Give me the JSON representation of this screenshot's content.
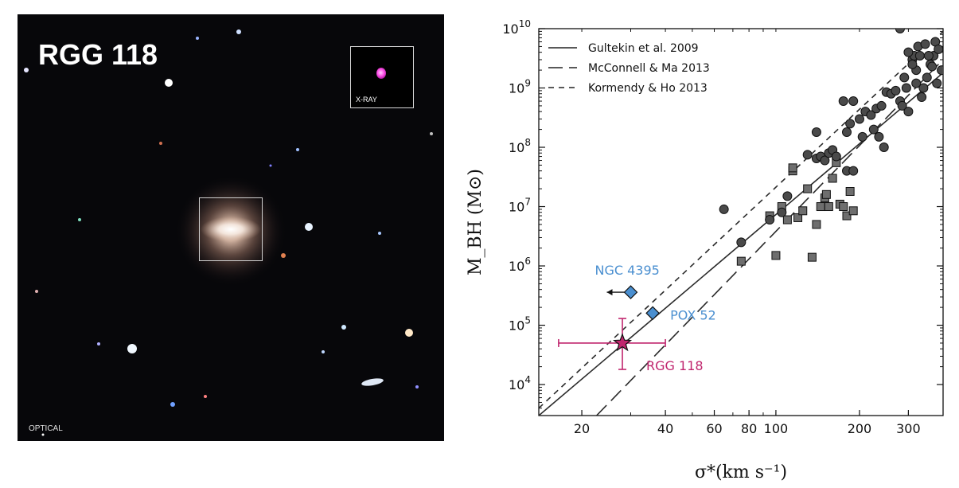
{
  "optical_panel": {
    "title": "RGG 118",
    "optical_label": "OPTICAL",
    "inset_label": "X-RAY"
  },
  "chart_data": {
    "type": "scatter",
    "xscale": "log",
    "yscale": "log",
    "xlim": [
      14,
      400
    ],
    "ylim": [
      3000,
      10000000000
    ],
    "xlabel": "σ*(km s⁻¹)",
    "ylabel": "M_BH (M⊙)",
    "x_ticks": [
      20,
      40,
      60,
      80,
      100,
      200,
      300
    ],
    "y_ticks": [
      10000,
      100000,
      1000000,
      10000000,
      100000000,
      1000000000,
      10000000000
    ],
    "legend": {
      "placement": "top-left",
      "entries": [
        "Gultekin et al. 2009",
        "McConnell & Ma 2013",
        "Kormendy & Ho 2013"
      ]
    },
    "relations": [
      {
        "name": "Gultekin et al. 2009",
        "style": "solid",
        "x": [
          14,
          400
        ],
        "y": [
          3000,
          1800000000
        ]
      },
      {
        "name": "McConnell & Ma 2013",
        "style": "long-dash",
        "x": [
          14,
          400
        ],
        "y": [
          300,
          3000000000
        ]
      },
      {
        "name": "Kormendy & Ho 2013",
        "style": "short-dash",
        "x": [
          14,
          400
        ],
        "y": [
          4000,
          9000000000
        ]
      }
    ],
    "circles": [
      [
        65,
        9000000
      ],
      [
        75,
        2500000
      ],
      [
        95,
        6000000
      ],
      [
        105,
        8000000
      ],
      [
        110,
        15000000
      ],
      [
        130,
        75000000
      ],
      [
        140,
        65000000
      ],
      [
        145,
        70000000
      ],
      [
        150,
        60000000
      ],
      [
        155,
        80000000
      ],
      [
        140,
        180000000
      ],
      [
        160,
        90000000
      ],
      [
        165,
        70000000
      ],
      [
        175,
        600000000
      ],
      [
        180,
        180000000
      ],
      [
        185,
        250000000
      ],
      [
        190,
        600000000
      ],
      [
        200,
        300000000
      ],
      [
        205,
        150000000
      ],
      [
        210,
        400000000
      ],
      [
        220,
        350000000
      ],
      [
        225,
        200000000
      ],
      [
        230,
        450000000
      ],
      [
        235,
        150000000
      ],
      [
        240,
        500000000
      ],
      [
        245,
        100000000
      ],
      [
        250,
        850000000
      ],
      [
        260,
        800000000
      ],
      [
        270,
        900000000
      ],
      [
        280,
        600000000
      ],
      [
        285,
        500000000
      ],
      [
        290,
        1500000000
      ],
      [
        295,
        1000000000
      ],
      [
        300,
        400000000
      ],
      [
        310,
        3000000000
      ],
      [
        315,
        3500000000
      ],
      [
        320,
        2000000000
      ],
      [
        325,
        5000000000
      ],
      [
        330,
        3500000000
      ],
      [
        340,
        1000000000
      ],
      [
        350,
        1500000000
      ],
      [
        360,
        2500000000
      ],
      [
        370,
        3500000000
      ],
      [
        380,
        1200000000
      ],
      [
        280,
        10000000000
      ],
      [
        300,
        4000000000
      ],
      [
        310,
        2500000000
      ],
      [
        320,
        1200000000
      ],
      [
        335,
        700000000
      ],
      [
        345,
        5500000000
      ],
      [
        355,
        3500000000
      ],
      [
        365,
        2300000000
      ],
      [
        375,
        6000000000
      ],
      [
        385,
        4500000000
      ],
      [
        395,
        2000000000
      ],
      [
        180,
        40000000
      ],
      [
        190,
        40000000
      ]
    ],
    "squares": [
      [
        75,
        1200000
      ],
      [
        95,
        7000000
      ],
      [
        100,
        1500000
      ],
      [
        105,
        10000000
      ],
      [
        110,
        6000000
      ],
      [
        115,
        40000000
      ],
      [
        120,
        6500000
      ],
      [
        125,
        8500000
      ],
      [
        130,
        20000000
      ],
      [
        135,
        1400000
      ],
      [
        140,
        5000000
      ],
      [
        145,
        10000000
      ],
      [
        150,
        14000000
      ],
      [
        152,
        16000000
      ],
      [
        155,
        10000000
      ],
      [
        160,
        30000000
      ],
      [
        165,
        55000000
      ],
      [
        170,
        11000000
      ],
      [
        175,
        10000000
      ],
      [
        180,
        7000000
      ],
      [
        185,
        18000000
      ],
      [
        190,
        8500000
      ],
      [
        115,
        45000000
      ]
    ],
    "special_points": [
      {
        "name": "NGC 4395",
        "x": 30,
        "y": 360000,
        "marker": "diamond",
        "color": "#4a8fd0",
        "upper_limit_x": true
      },
      {
        "name": "POX 52",
        "x": 36,
        "y": 160000,
        "marker": "diamond",
        "color": "#4a8fd0"
      },
      {
        "name": "RGG 118",
        "x": 28,
        "y": 50000,
        "marker": "star",
        "color": "#c0266e",
        "xerr": [
          16.5,
          40
        ],
        "yerr": [
          18000,
          130000
        ]
      }
    ],
    "annotations": [
      {
        "text": "NGC 4395",
        "color": "#4a8fd0"
      },
      {
        "text": "POX 52",
        "color": "#4a8fd0"
      },
      {
        "text": "RGG 118",
        "color": "#c0266e"
      }
    ]
  }
}
